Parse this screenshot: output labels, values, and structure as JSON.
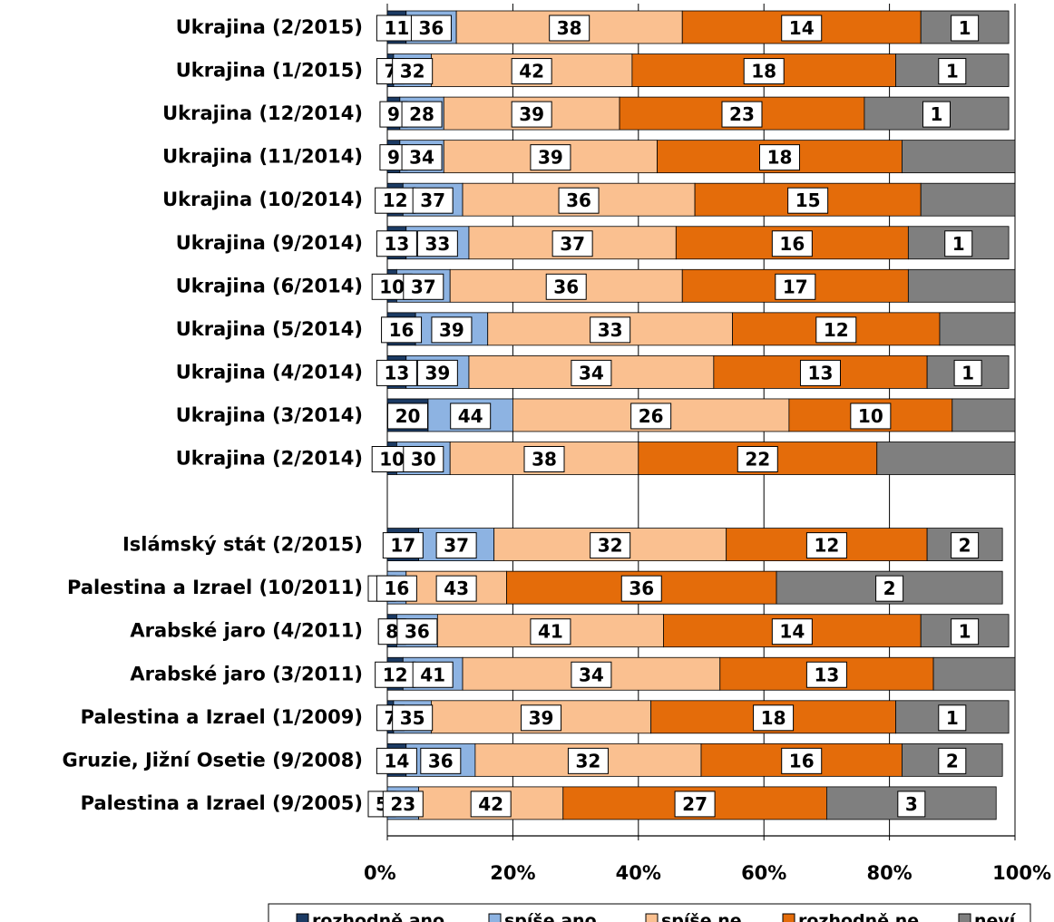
{
  "chart_data": {
    "type": "bar",
    "orientation": "horizontal",
    "stacked": "percent",
    "title": "",
    "xlabel": "",
    "ylabel": "",
    "xlim": [
      0,
      100
    ],
    "x_ticks": [
      "0%",
      "20%",
      "40%",
      "60%",
      "80%",
      "100%"
    ],
    "grid": "vertical",
    "legend_position": "bottom",
    "categories": [
      "Ukrajina (2/2015)",
      "Ukrajina (1/2015)",
      "Ukrajina (12/2014)",
      "Ukrajina (11/2014)",
      "Ukrajina (10/2014)",
      "Ukrajina (9/2014)",
      "Ukrajina (6/2014)",
      "Ukrajina (5/2014)",
      "Ukrajina (4/2014)",
      "Ukrajina (3/2014)",
      "Ukrajina (2/2014)",
      "",
      "Islámský stát (2/2015)",
      "Palestina a Izrael (10/2011)",
      "Arabské jaro (4/2011)",
      "Arabské jaro (3/2011)",
      "Palestina a Izrael (1/2009)",
      "Gruzie, Jižní Osetie (9/2008)",
      "Palestina a Izrael (9/2005)"
    ],
    "series": [
      {
        "name": "rozhodně ano",
        "color": "#1b3a63",
        "values": [
          3,
          1,
          2,
          2,
          2.5,
          3,
          1.5,
          4.5,
          3,
          6.5,
          1.5,
          null,
          5,
          0,
          1.5,
          2.5,
          1,
          3,
          0
        ]
      },
      {
        "name": "spíše ano",
        "color": "#8db3e2",
        "values": [
          8,
          6,
          7,
          7,
          9.5,
          10,
          8.5,
          11.5,
          10,
          13.5,
          8.5,
          null,
          12,
          3,
          6.5,
          9.5,
          6,
          11,
          5
        ]
      },
      {
        "name": "spíše ne",
        "color": "#fac090",
        "values": [
          36,
          32,
          28,
          34,
          37,
          33,
          37,
          39,
          39,
          44,
          30,
          null,
          37,
          16,
          36,
          41,
          35,
          36,
          23
        ]
      },
      {
        "name": "rozhodně ne",
        "color": "#e46c0a",
        "values": [
          38,
          42,
          39,
          39,
          36,
          37,
          36,
          33,
          34,
          26,
          38,
          null,
          32,
          43,
          41,
          34,
          39,
          32,
          42
        ]
      },
      {
        "name": "neví",
        "color": "#7f7f7f",
        "values": [
          14,
          18,
          23,
          18,
          15,
          16,
          17,
          12,
          13,
          10,
          22,
          null,
          12,
          36,
          14,
          13,
          18,
          16,
          27
        ]
      }
    ],
    "labels": [
      [
        "11",
        "36",
        "38",
        "14",
        "1"
      ],
      [
        "7",
        "32",
        "42",
        "18",
        "1"
      ],
      [
        "9",
        "28",
        "39",
        "23",
        "1"
      ],
      [
        "9",
        "34",
        "39",
        "18",
        ""
      ],
      [
        "12",
        "37",
        "36",
        "15",
        ""
      ],
      [
        "13",
        "33",
        "37",
        "16",
        "1"
      ],
      [
        "10",
        "37",
        "36",
        "17",
        ""
      ],
      [
        "16",
        "39",
        "33",
        "12",
        ""
      ],
      [
        "13",
        "39",
        "34",
        "13",
        "1"
      ],
      [
        "20",
        "44",
        "26",
        "10",
        ""
      ],
      [
        "10",
        "30",
        "38",
        "22",
        ""
      ],
      [
        "",
        "",
        "",
        "",
        ""
      ],
      [
        "17",
        "37",
        "32",
        "12",
        "2"
      ],
      [
        "3",
        "16",
        "43",
        "36",
        "2"
      ],
      [
        "8",
        "36",
        "41",
        "14",
        "1"
      ],
      [
        "12",
        "41",
        "34",
        "13",
        ""
      ],
      [
        "7",
        "35",
        "39",
        "18",
        "1"
      ],
      [
        "14",
        "36",
        "32",
        "16",
        "2"
      ],
      [
        "5",
        "23",
        "42",
        "27",
        "3"
      ]
    ],
    "legend": [
      "rozhodně ano",
      "spíše ano",
      "spíše ne",
      "rozhodně ne",
      "neví"
    ]
  }
}
